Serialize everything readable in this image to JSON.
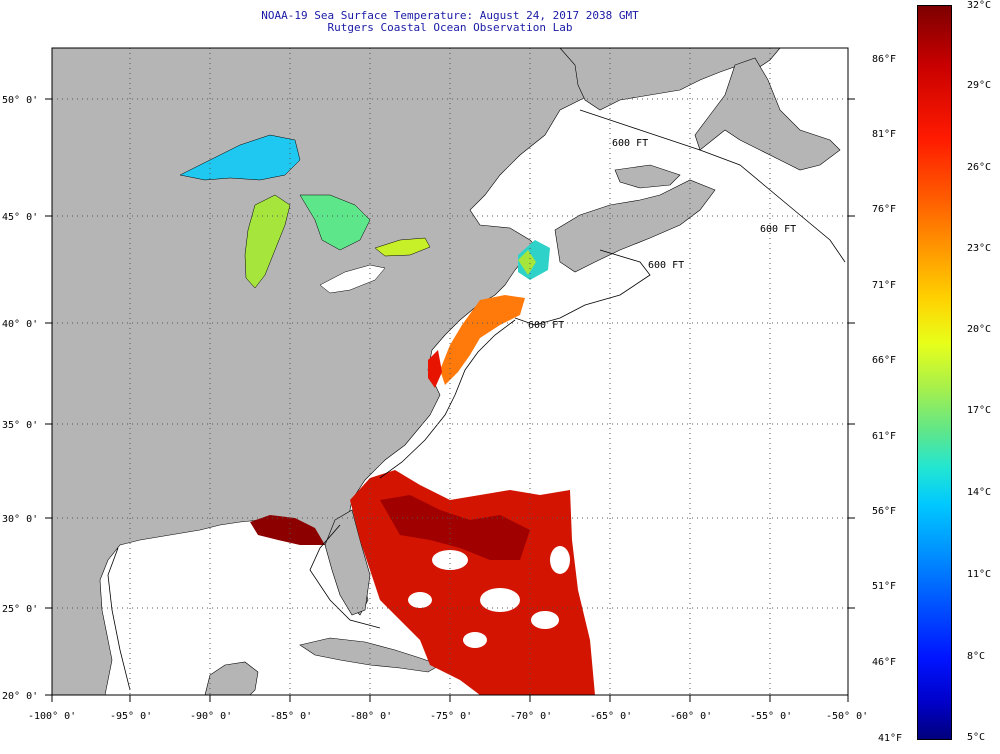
{
  "header": {
    "title_line1": "NOAA-19 Sea Surface Temperature:  August 24, 2017 2038 GMT",
    "title_line2": "Rutgers Coastal Ocean Observation Lab"
  },
  "map": {
    "lon_ticks": [
      "-100° 0'",
      "-95° 0'",
      "-90° 0'",
      "-85° 0'",
      "-80° 0'",
      "-75° 0'",
      "-70° 0'",
      "-65° 0'",
      "-60° 0'",
      "-55° 0'",
      "-50° 0'"
    ],
    "lat_ticks": [
      "50° 0'",
      "45° 0'",
      "40° 0'",
      "35° 0'",
      "30° 0'",
      "25° 0'",
      "20° 0'"
    ],
    "contour_labels": [
      "600 FT",
      "600 FT",
      "600 FT",
      "600 FT"
    ],
    "colors": {
      "land": "#b5b5b5",
      "ocean_nodata": "#ffffff",
      "grid": "#555555"
    }
  },
  "colorbar": {
    "fahrenheit_labels": [
      "86°F",
      "81°F",
      "76°F",
      "71°F",
      "66°F",
      "61°F",
      "56°F",
      "51°F",
      "46°F",
      "41°F"
    ],
    "celsius_labels": [
      "32°C",
      "29°C",
      "26°C",
      "23°C",
      "20°C",
      "17°C",
      "14°C",
      "11°C",
      "8°C",
      "5°C"
    ],
    "range_c": [
      5,
      32
    ],
    "range_f": [
      41,
      86
    ]
  }
}
